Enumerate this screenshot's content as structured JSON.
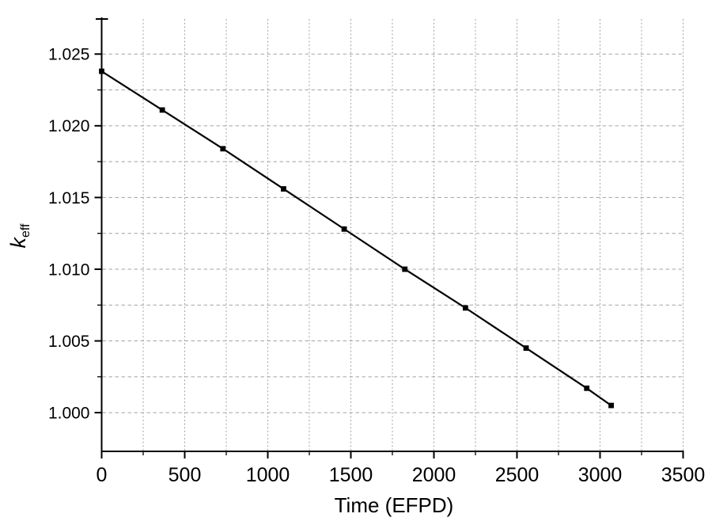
{
  "chart_data": {
    "type": "line",
    "title": "",
    "xlabel": "Time (EFPD)",
    "ylabel_main": "k",
    "ylabel_sub": "eff",
    "series": [
      {
        "name": "keff",
        "x": [
          0,
          365,
          730,
          1095,
          1460,
          1825,
          2190,
          2555,
          2920,
          3067
        ],
        "y": [
          1.0238,
          1.0211,
          1.0184,
          1.0156,
          1.0128,
          1.01,
          1.0073,
          1.0045,
          1.0017,
          1.0005
        ],
        "marker": "filled-square",
        "line_style": "solid"
      }
    ],
    "xlim": [
      0,
      3500
    ],
    "ylim": [
      0.9973,
      1.0275
    ],
    "x_major_ticks": [
      0,
      500,
      1000,
      1500,
      2000,
      2500,
      3000,
      3500
    ],
    "x_tick_labels": [
      "0",
      "500",
      "1000",
      "1500",
      "2000",
      "2500",
      "3000",
      "3500"
    ],
    "y_major_ticks": [
      1.0,
      1.005,
      1.01,
      1.015,
      1.02,
      1.025
    ],
    "y_tick_labels": [
      "1.000",
      "1.005",
      "1.010",
      "1.015",
      "1.020",
      "1.025"
    ],
    "x_minor_step": 250,
    "y_minor_step": 0.0025,
    "grid": {
      "show": true,
      "style": "dashed",
      "on_minor_ticks": true
    },
    "legend": {
      "show": false
    },
    "colors": {
      "line": "#000000",
      "marker": "#000000",
      "grid": "#a3a3a3",
      "axis": "#000000",
      "text": "#000000",
      "background": "#ffffff"
    }
  }
}
